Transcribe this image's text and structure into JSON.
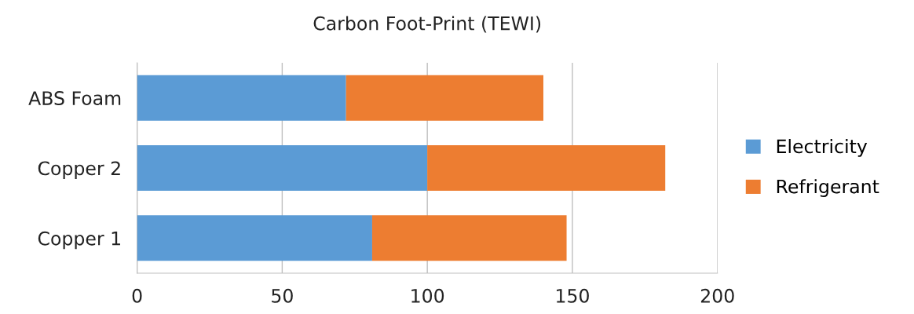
{
  "chart_data": {
    "type": "bar",
    "title": "Carbon Foot-Print (TEWI)",
    "orientation": "horizontal",
    "stacked": true,
    "categories": [
      "ABS Foam",
      "Copper 2",
      "Copper 1"
    ],
    "series": [
      {
        "name": "Electricity",
        "color": "#5b9bd5",
        "values": [
          72,
          100,
          81
        ]
      },
      {
        "name": "Refrigerant",
        "color": "#ed7d31",
        "values": [
          68,
          82,
          67
        ]
      }
    ],
    "xlim": [
      0,
      200
    ],
    "xticks": [
      0,
      50,
      100,
      150,
      200
    ],
    "grid": "x",
    "legend": "right"
  }
}
